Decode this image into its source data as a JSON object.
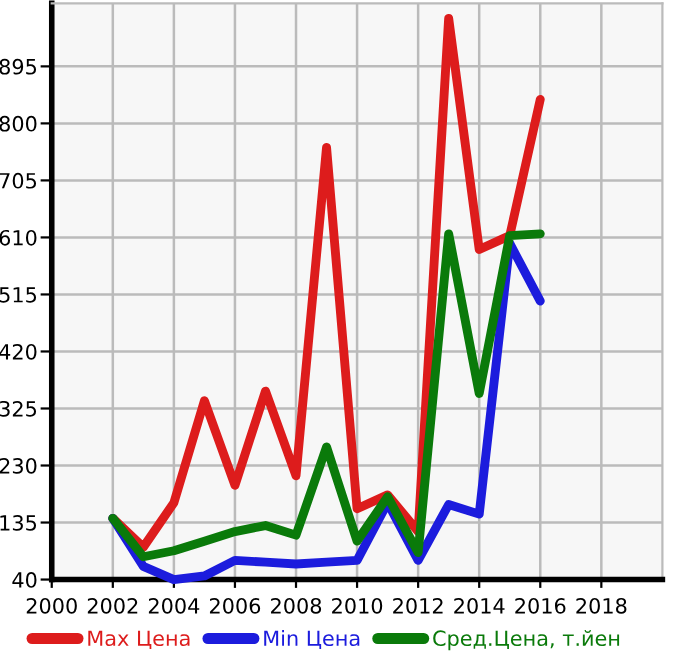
{
  "chart_data": {
    "type": "line",
    "x": [
      2002,
      2003,
      2004,
      2005,
      2006,
      2007,
      2008,
      2009,
      2010,
      2011,
      2012,
      2013,
      2014,
      2015,
      2016
    ],
    "series": [
      {
        "name": "Max Цена",
        "color": "#dd1c1c",
        "values": [
          142,
          94,
          168,
          338,
          197,
          354,
          213,
          760,
          158,
          181,
          120,
          975,
          590,
          613,
          840
        ]
      },
      {
        "name": "Min Цена",
        "color": "#1c1cdd",
        "values": [
          142,
          62,
          40,
          46,
          72,
          69,
          66,
          69,
          72,
          168,
          72,
          165,
          149,
          600,
          504
        ]
      },
      {
        "name": "Сред.Цена, т.йен",
        "color": "#0a7a0a",
        "values": [
          142,
          78,
          88,
          104,
          120,
          130,
          114,
          261,
          104,
          178,
          85,
          616,
          350,
          613,
          616
        ]
      }
    ],
    "xlim": [
      2000,
      2020
    ],
    "ylim": [
      40,
      1000
    ],
    "xticks": [
      2000,
      2002,
      2004,
      2006,
      2008,
      2010,
      2012,
      2014,
      2016,
      2018
    ],
    "yticks": [
      40,
      135,
      230,
      325,
      420,
      515,
      610,
      705,
      800,
      895
    ],
    "grid": true,
    "legend": "bottom",
    "marker": "none",
    "line_style": "solid"
  }
}
